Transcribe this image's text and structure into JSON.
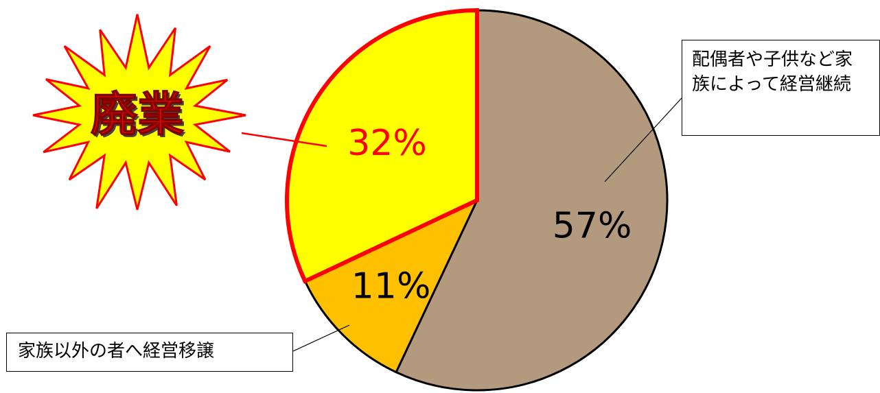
{
  "chart_data": {
    "type": "pie",
    "title": "",
    "slices": [
      {
        "label": "配偶者や子供など家族によって経営継続",
        "value": 57,
        "value_label": "57%",
        "color": "#b39a7e",
        "label_color": "#000000"
      },
      {
        "label": "家族以外の者へ経営移譲",
        "value": 11,
        "value_label": "11%",
        "color": "#ffc000",
        "label_color": "#000000"
      },
      {
        "label": "廃業",
        "value": 32,
        "value_label": "32%",
        "color": "#ffff00",
        "label_color": "#ff0000",
        "highlight": true
      }
    ],
    "start_angle": "12 o'clock",
    "direction": "clockwise",
    "legend": "none",
    "colors": {
      "slice_outline": "#000000",
      "highlight_outline": "#ff0000",
      "burst_fill": "#ffff00",
      "burst_stroke": "#ff0000",
      "burst_text": "#ff0000"
    }
  },
  "annotations": {
    "burst_text": "廃業",
    "family_callout": "配偶者や子供など家族によって経営継続",
    "transfer_callout": "家族以外の者へ経営移譲"
  }
}
